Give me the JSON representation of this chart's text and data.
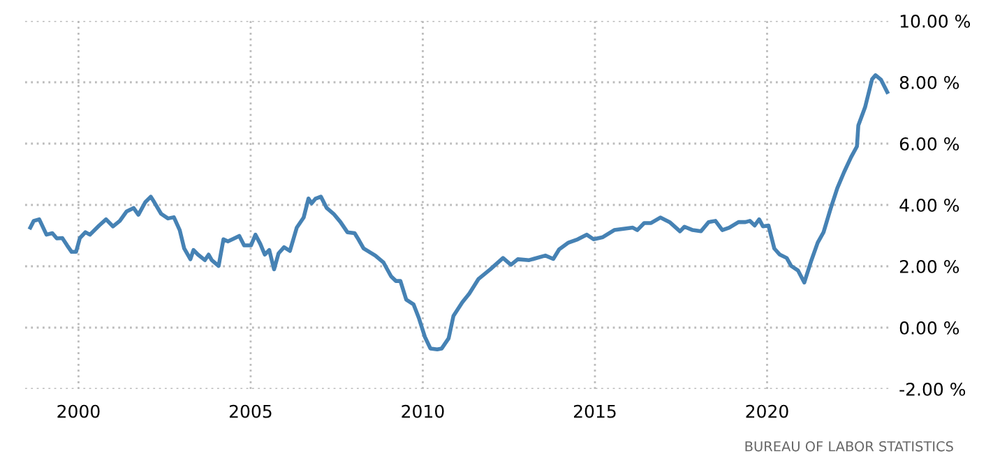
{
  "chart_data": {
    "type": "line",
    "x": [
      1998.6,
      1998.7,
      1998.86,
      1999.07,
      1999.24,
      1999.37,
      1999.53,
      1999.67,
      1999.8,
      1999.93,
      2000.04,
      2000.2,
      2000.33,
      2000.6,
      2000.8,
      2001.0,
      2001.2,
      2001.4,
      2001.6,
      2001.74,
      2001.94,
      2002.1,
      2002.2,
      2002.4,
      2002.6,
      2002.77,
      2002.94,
      2003.07,
      2003.25,
      2003.34,
      2003.47,
      2003.67,
      2003.78,
      2003.87,
      2004.07,
      2004.21,
      2004.34,
      2004.47,
      2004.67,
      2004.81,
      2005.01,
      2005.14,
      2005.28,
      2005.41,
      2005.54,
      2005.68,
      2005.81,
      2005.97,
      2006.14,
      2006.34,
      2006.54,
      2006.68,
      2006.77,
      2006.88,
      2007.04,
      2007.21,
      2007.41,
      2007.61,
      2007.81,
      2008.02,
      2008.15,
      2008.28,
      2008.62,
      2008.86,
      2009.08,
      2009.22,
      2009.35,
      2009.52,
      2009.73,
      2009.89,
      2010.06,
      2010.22,
      2010.42,
      2010.55,
      2010.75,
      2010.89,
      2011.15,
      2011.35,
      2011.62,
      2011.96,
      2012.33,
      2012.56,
      2012.76,
      2013.09,
      2013.56,
      2013.79,
      2013.96,
      2014.23,
      2014.5,
      2014.76,
      2014.96,
      2015.23,
      2015.56,
      2016.1,
      2016.23,
      2016.43,
      2016.63,
      2016.9,
      2017.17,
      2017.47,
      2017.6,
      2017.84,
      2018.08,
      2018.3,
      2018.5,
      2018.7,
      2018.9,
      2019.17,
      2019.37,
      2019.5,
      2019.64,
      2019.77,
      2019.88,
      2020.04,
      2020.21,
      2020.37,
      2020.57,
      2020.7,
      2020.9,
      2021.08,
      2021.28,
      2021.47,
      2021.64,
      2021.84,
      2022.04,
      2022.24,
      2022.44,
      2022.61,
      2022.65,
      2022.85,
      2023.05,
      2023.15,
      2023.31,
      2023.49
    ],
    "series": [
      {
        "color": "#4682b4",
        "values": [
          3.26,
          3.48,
          3.53,
          3.03,
          3.08,
          2.91,
          2.92,
          2.68,
          2.47,
          2.47,
          2.92,
          3.11,
          3.03,
          3.33,
          3.53,
          3.3,
          3.48,
          3.79,
          3.9,
          3.68,
          4.09,
          4.27,
          4.09,
          3.71,
          3.56,
          3.6,
          3.18,
          2.58,
          2.23,
          2.53,
          2.38,
          2.2,
          2.38,
          2.2,
          2.01,
          2.88,
          2.81,
          2.88,
          2.99,
          2.68,
          2.68,
          3.03,
          2.73,
          2.38,
          2.53,
          1.9,
          2.42,
          2.62,
          2.5,
          3.26,
          3.59,
          4.21,
          4.05,
          4.2,
          4.27,
          3.9,
          3.71,
          3.44,
          3.11,
          3.08,
          2.84,
          2.58,
          2.35,
          2.12,
          1.67,
          1.52,
          1.52,
          0.91,
          0.76,
          0.3,
          -0.3,
          -0.68,
          -0.71,
          -0.68,
          -0.35,
          0.38,
          0.83,
          1.11,
          1.59,
          1.9,
          2.27,
          2.05,
          2.23,
          2.2,
          2.35,
          2.24,
          2.55,
          2.77,
          2.88,
          3.03,
          2.88,
          2.95,
          3.18,
          3.26,
          3.18,
          3.41,
          3.41,
          3.59,
          3.44,
          3.14,
          3.29,
          3.18,
          3.14,
          3.44,
          3.48,
          3.18,
          3.26,
          3.44,
          3.44,
          3.48,
          3.33,
          3.53,
          3.3,
          3.33,
          2.58,
          2.38,
          2.27,
          2.01,
          1.86,
          1.47,
          2.17,
          2.77,
          3.11,
          3.86,
          4.55,
          5.08,
          5.56,
          5.91,
          6.59,
          7.2,
          8.1,
          8.23,
          8.08,
          7.68
        ]
      }
    ],
    "xlim": [
      1998.45,
      2023.6
    ],
    "xticks": [
      2000,
      2005,
      2010,
      2015,
      2020
    ],
    "ylim": [
      -2,
      10
    ],
    "yticks": [
      {
        "value": -2,
        "label": "-2.00 %"
      },
      {
        "value": 0,
        "label": "0.00 %"
      },
      {
        "value": 2,
        "label": "2.00 %"
      },
      {
        "value": 4,
        "label": "4.00 %"
      },
      {
        "value": 6,
        "label": "6.00 %"
      },
      {
        "value": 8,
        "label": "8.00 %"
      },
      {
        "value": 10,
        "label": "10.00 %"
      }
    ],
    "grid": true,
    "annotations": [
      "BUREAU OF LABOR STATISTICS"
    ]
  }
}
